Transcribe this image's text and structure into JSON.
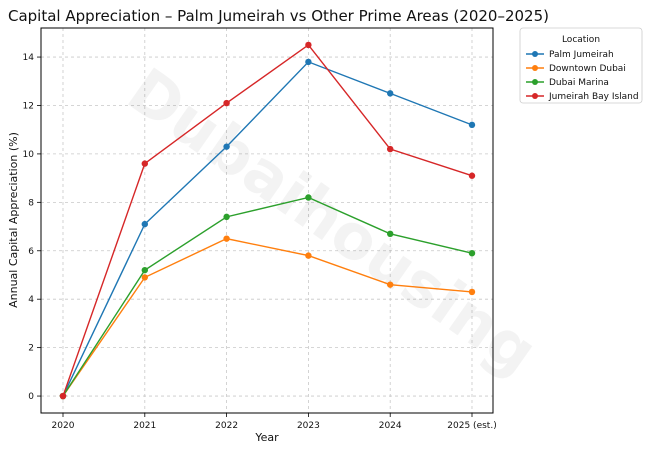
{
  "chart_data": {
    "type": "line",
    "title": "Capital Appreciation – Palm Jumeirah vs Other Prime Areas (2020–2025)",
    "xlabel": "Year",
    "ylabel": "Annual Capital Appreciation (%)",
    "categories": [
      "2020",
      "2021",
      "2022",
      "2023",
      "2024",
      "2025 (est.)"
    ],
    "ylim": [
      -0.7,
      15.2
    ],
    "yticks": [
      0,
      2,
      4,
      6,
      8,
      10,
      12,
      14
    ],
    "grid": true,
    "legend": {
      "title": "Location",
      "placement": "outside-top-right"
    },
    "watermark": "Dubaihousing",
    "series": [
      {
        "name": "Palm Jumeirah",
        "color": "#1f77b4",
        "values": [
          0,
          7.1,
          10.3,
          13.8,
          12.5,
          11.2
        ]
      },
      {
        "name": "Downtown Dubai",
        "color": "#ff7f0e",
        "values": [
          0,
          4.9,
          6.5,
          5.8,
          4.6,
          4.3
        ]
      },
      {
        "name": "Dubai Marina",
        "color": "#2ca02c",
        "values": [
          0,
          5.2,
          7.4,
          8.2,
          6.7,
          5.9
        ]
      },
      {
        "name": "Jumeirah Bay Island",
        "color": "#d62728",
        "values": [
          0,
          9.6,
          12.1,
          14.5,
          10.2,
          9.1
        ]
      }
    ]
  }
}
